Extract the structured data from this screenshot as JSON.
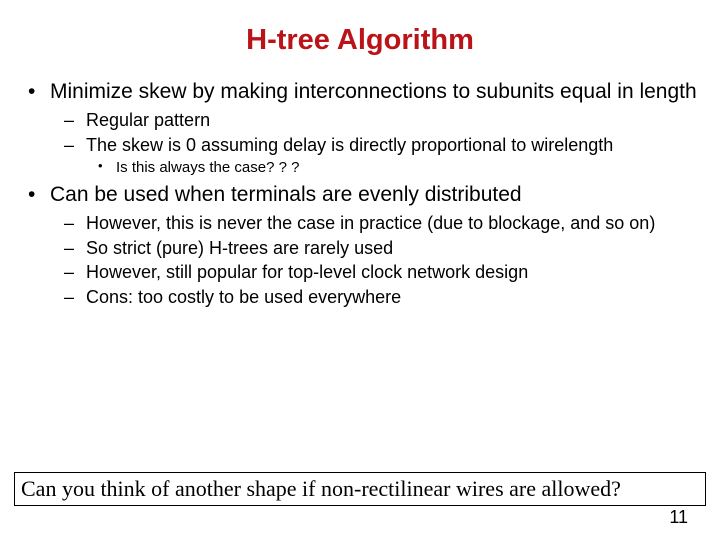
{
  "title": "H-tree Algorithm",
  "bullets": {
    "b1": "Minimize skew by making interconnections to subunits equal in length",
    "b1_1": "Regular pattern",
    "b1_2": "The skew is 0 assuming delay is directly proportional to wirelength",
    "b1_2_1": "Is this always the case? ? ?",
    "b2": "Can be used when terminals are evenly distributed",
    "b2_1": "However, this is never the case in practice (due to blockage, and so on)",
    "b2_2": "So strict (pure) H-trees are rarely used",
    "b2_3": "However, still popular for top-level clock network design",
    "b2_4": "Cons: too costly to be used everywhere"
  },
  "footer_question": "Can you think of another shape if non-rectilinear wires are allowed?",
  "page_number": "11",
  "colors": {
    "title_color": "#ba1419",
    "text_color": "#000000",
    "background": "#ffffff"
  }
}
